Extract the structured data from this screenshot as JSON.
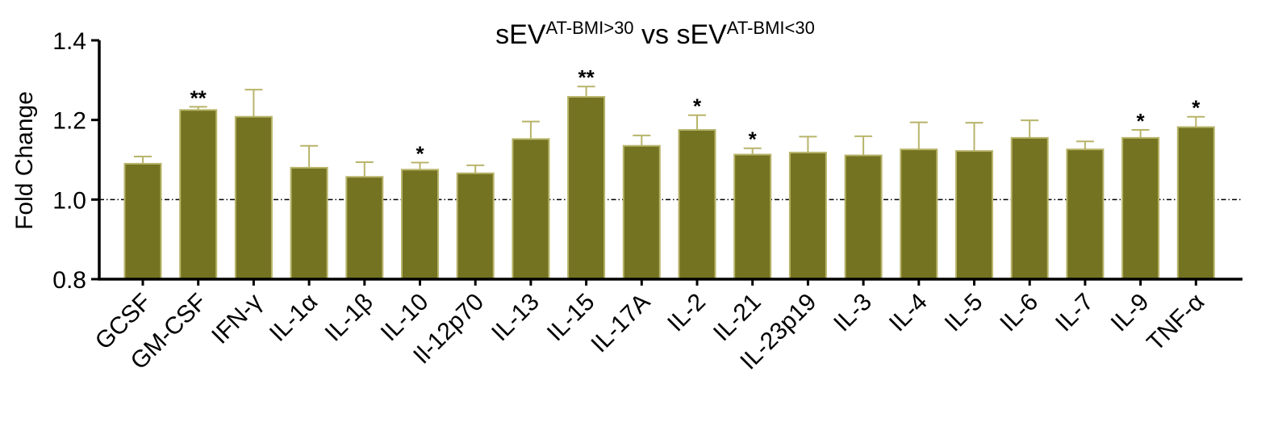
{
  "chart_data": {
    "type": "bar",
    "title": {
      "prefix": "sEV",
      "sup1": "AT-BMI>30",
      "middle": " vs sEV",
      "sup2": "AT-BMI<30"
    },
    "ylabel": "Fold Change",
    "xlabel": "",
    "ylim": [
      0.8,
      1.4
    ],
    "yticks": [
      "0.8",
      "1.0",
      "1.2",
      "1.4"
    ],
    "reference_line": 1.0,
    "bar_color": "#737321",
    "error_color": "#b8b46a",
    "categories": [
      "GCSF",
      "GM-CSF",
      "IFN-γ",
      "IL-1α",
      "IL-1β",
      "IL-10",
      "Il-12p70",
      "IL-13",
      "IL-15",
      "IL-17A",
      "IL-2",
      "IL-21",
      "IL-23p19",
      "IL-3",
      "IL-4",
      "IL-5",
      "IL-6",
      "IL-7",
      "IL-9",
      "TNF-α"
    ],
    "values": [
      1.09,
      1.225,
      1.208,
      1.08,
      1.057,
      1.075,
      1.066,
      1.152,
      1.258,
      1.135,
      1.175,
      1.113,
      1.118,
      1.111,
      1.126,
      1.122,
      1.155,
      1.126,
      1.155,
      1.182
    ],
    "errors": [
      0.018,
      0.008,
      0.068,
      0.055,
      0.037,
      0.018,
      0.02,
      0.044,
      0.026,
      0.026,
      0.037,
      0.016,
      0.04,
      0.048,
      0.068,
      0.071,
      0.044,
      0.02,
      0.02,
      0.026
    ],
    "significance": [
      "",
      "**",
      "",
      "",
      "",
      "*",
      "",
      "",
      "**",
      "",
      "*",
      "*",
      "",
      "",
      "",
      "",
      "",
      "",
      "*",
      "*"
    ]
  }
}
